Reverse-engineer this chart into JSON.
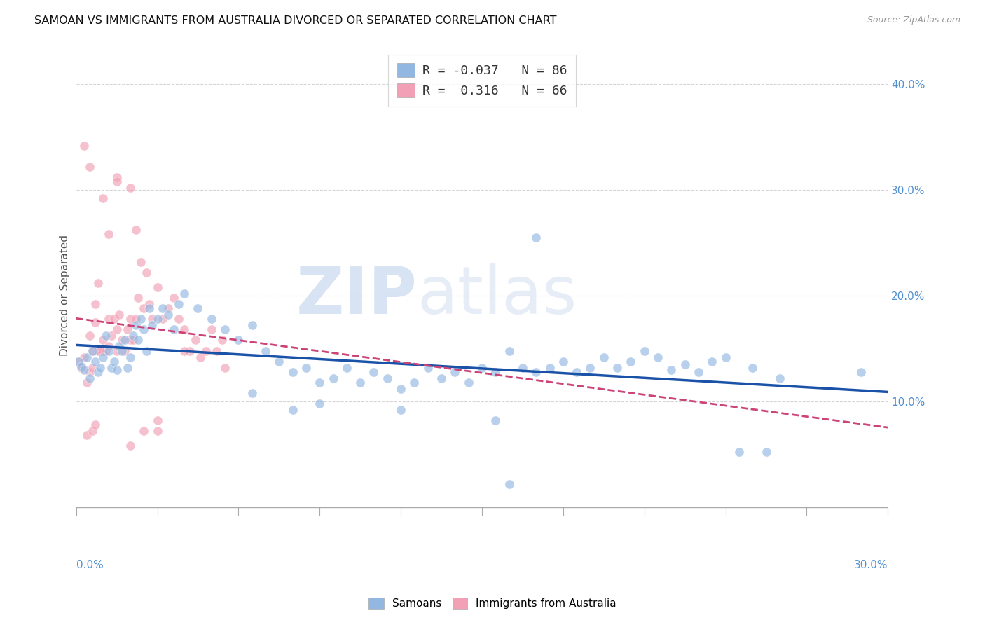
{
  "title": "SAMOAN VS IMMIGRANTS FROM AUSTRALIA DIVORCED OR SEPARATED CORRELATION CHART",
  "source": "Source: ZipAtlas.com",
  "ylabel": "Divorced or Separated",
  "xmin": 0.0,
  "xmax": 0.3,
  "ymin": -0.025,
  "ymax": 0.425,
  "ytick_vals": [
    0.1,
    0.2,
    0.3,
    0.4
  ],
  "blue_color": "#92b8e2",
  "pink_color": "#f2a0b5",
  "blue_line_color": "#1a52a8",
  "pink_line_color": "#cc4477",
  "watermark_color": "#d5e8f8",
  "background_color": "#ffffff",
  "grid_color": "#d5d5d5",
  "right_tick_color": "#5090d0",
  "blue_R": -0.037,
  "blue_N": 86,
  "pink_R": 0.316,
  "pink_N": 66,
  "blue_points_x": [
    0.001,
    0.002,
    0.003,
    0.004,
    0.005,
    0.006,
    0.007,
    0.008,
    0.009,
    0.01,
    0.011,
    0.012,
    0.013,
    0.014,
    0.015,
    0.016,
    0.017,
    0.018,
    0.019,
    0.02,
    0.021,
    0.022,
    0.023,
    0.024,
    0.025,
    0.026,
    0.027,
    0.028,
    0.03,
    0.032,
    0.034,
    0.036,
    0.038,
    0.04,
    0.045,
    0.05,
    0.055,
    0.06,
    0.065,
    0.07,
    0.075,
    0.08,
    0.085,
    0.09,
    0.095,
    0.1,
    0.105,
    0.11,
    0.115,
    0.12,
    0.125,
    0.13,
    0.135,
    0.14,
    0.145,
    0.15,
    0.155,
    0.16,
    0.165,
    0.17,
    0.175,
    0.18,
    0.185,
    0.19,
    0.195,
    0.2,
    0.205,
    0.21,
    0.215,
    0.22,
    0.225,
    0.23,
    0.235,
    0.24,
    0.25,
    0.26,
    0.065,
    0.08,
    0.09,
    0.12,
    0.155,
    0.16,
    0.245,
    0.255,
    0.29,
    0.17
  ],
  "blue_points_y": [
    0.138,
    0.133,
    0.13,
    0.142,
    0.122,
    0.148,
    0.138,
    0.128,
    0.132,
    0.142,
    0.162,
    0.148,
    0.132,
    0.138,
    0.13,
    0.152,
    0.148,
    0.158,
    0.132,
    0.142,
    0.162,
    0.172,
    0.158,
    0.178,
    0.168,
    0.148,
    0.188,
    0.172,
    0.178,
    0.188,
    0.182,
    0.168,
    0.192,
    0.202,
    0.188,
    0.178,
    0.168,
    0.158,
    0.172,
    0.148,
    0.138,
    0.128,
    0.132,
    0.118,
    0.122,
    0.132,
    0.118,
    0.128,
    0.122,
    0.112,
    0.118,
    0.132,
    0.122,
    0.128,
    0.118,
    0.132,
    0.128,
    0.148,
    0.132,
    0.128,
    0.132,
    0.138,
    0.128,
    0.132,
    0.142,
    0.132,
    0.138,
    0.148,
    0.142,
    0.13,
    0.135,
    0.128,
    0.138,
    0.142,
    0.132,
    0.122,
    0.108,
    0.092,
    0.098,
    0.092,
    0.082,
    0.022,
    0.052,
    0.052,
    0.128,
    0.255
  ],
  "pink_points_x": [
    0.001,
    0.002,
    0.003,
    0.004,
    0.005,
    0.005,
    0.006,
    0.006,
    0.007,
    0.007,
    0.008,
    0.008,
    0.009,
    0.01,
    0.01,
    0.011,
    0.012,
    0.012,
    0.013,
    0.014,
    0.015,
    0.015,
    0.016,
    0.017,
    0.018,
    0.019,
    0.02,
    0.02,
    0.021,
    0.022,
    0.023,
    0.024,
    0.025,
    0.026,
    0.027,
    0.028,
    0.03,
    0.032,
    0.034,
    0.036,
    0.038,
    0.04,
    0.042,
    0.044,
    0.046,
    0.048,
    0.05,
    0.052,
    0.054,
    0.055,
    0.003,
    0.005,
    0.01,
    0.012,
    0.015,
    0.015,
    0.02,
    0.022,
    0.03,
    0.04,
    0.004,
    0.006,
    0.007,
    0.02,
    0.025,
    0.03
  ],
  "pink_points_y": [
    0.138,
    0.132,
    0.142,
    0.118,
    0.128,
    0.162,
    0.132,
    0.148,
    0.192,
    0.175,
    0.212,
    0.148,
    0.148,
    0.158,
    0.148,
    0.148,
    0.152,
    0.178,
    0.162,
    0.178,
    0.168,
    0.148,
    0.182,
    0.158,
    0.148,
    0.168,
    0.158,
    0.178,
    0.158,
    0.178,
    0.198,
    0.232,
    0.188,
    0.222,
    0.192,
    0.178,
    0.208,
    0.178,
    0.188,
    0.198,
    0.178,
    0.168,
    0.148,
    0.158,
    0.142,
    0.148,
    0.168,
    0.148,
    0.158,
    0.132,
    0.342,
    0.322,
    0.292,
    0.258,
    0.312,
    0.308,
    0.302,
    0.262,
    0.072,
    0.148,
    0.068,
    0.072,
    0.078,
    0.058,
    0.072,
    0.082
  ]
}
